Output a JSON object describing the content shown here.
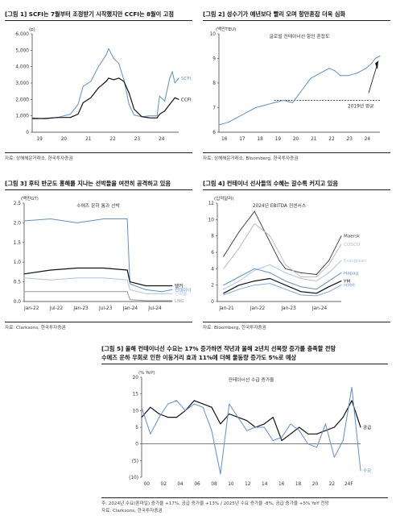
{
  "panels": [
    {
      "title": "[그림 1] SCFI는 7월부터 조정받기 시작했지만 CCFI는 8월이 고점",
      "source": "자료: 상해해운거래소, 한국투자증권",
      "chart_data": {
        "type": "line",
        "unit_label": "(p)",
        "x_ticks": [
          "19",
          "20",
          "21",
          "22",
          "23",
          "24"
        ],
        "x_range": [
          2019.0,
          2024.75
        ],
        "ylim": [
          0,
          6000
        ],
        "y_ticks": [
          0,
          1000,
          2000,
          3000,
          4000,
          5000,
          6000
        ],
        "y_tick_labels": [
          "0",
          "1,000",
          "2,000",
          "3,000",
          "4,000",
          "5,000",
          "6,000"
        ],
        "series": [
          {
            "name": "SCFI",
            "color": "#5b8fd6",
            "x": [
              2019.0,
              2019.5,
              2020.0,
              2020.5,
              2020.8,
              2021.0,
              2021.3,
              2021.6,
              2021.9,
              2022.0,
              2022.2,
              2022.4,
              2022.6,
              2022.8,
              2023.0,
              2023.3,
              2023.6,
              2023.9,
              2024.0,
              2024.2,
              2024.4,
              2024.5,
              2024.6,
              2024.75
            ],
            "y": [
              800,
              850,
              900,
              1100,
              1700,
              2800,
              3100,
              4000,
              4700,
              5100,
              4500,
              4200,
              3200,
              1700,
              1050,
              950,
              1000,
              1000,
              2200,
              1900,
              3300,
              3700,
              3000,
              3300
            ]
          },
          {
            "name": "CCFI",
            "color": "#111111",
            "x": [
              2019.0,
              2019.5,
              2020.0,
              2020.5,
              2020.8,
              2021.0,
              2021.3,
              2021.6,
              2021.9,
              2022.0,
              2022.2,
              2022.4,
              2022.6,
              2022.8,
              2023.0,
              2023.3,
              2023.6,
              2023.9,
              2024.0,
              2024.2,
              2024.4,
              2024.6,
              2024.75
            ],
            "y": [
              850,
              830,
              900,
              900,
              1100,
              1800,
              2100,
              2700,
              3100,
              3300,
              3200,
              3300,
              3100,
              2400,
              1400,
              950,
              880,
              870,
              1100,
              1300,
              1700,
              2100,
              2000
            ]
          }
        ]
      }
    },
    {
      "title": "[그림 2] 성수기가 예년보다 빨리 오며 항만혼잡 더욱 심화",
      "source": "자료: 상해해운거래소, Bloomberg, 한국투자증권",
      "chart_data": {
        "type": "line",
        "unit_label": "(백만TEU)",
        "annotation_top": "글로벌 컨테이너선 항만 혼잡도",
        "annotation_line": "2019년 평균",
        "x_ticks": [
          "16",
          "17",
          "18",
          "19",
          "20",
          "21",
          "22",
          "23",
          "24"
        ],
        "x_range": [
          2016.0,
          2024.75
        ],
        "ylim": [
          6,
          10
        ],
        "y_ticks": [
          6,
          7,
          8,
          9,
          10
        ],
        "y_tick_labels": [
          "6",
          "7",
          "8",
          "9",
          "10"
        ],
        "reference_y": 7.3,
        "series": [
          {
            "name": "",
            "color": "#5b8fd6",
            "x": [
              2016.0,
              2016.5,
              2017.0,
              2017.5,
              2018.0,
              2018.5,
              2019.0,
              2019.5,
              2020.0,
              2020.3,
              2020.7,
              2021.0,
              2021.5,
              2022.0,
              2022.3,
              2022.6,
              2023.0,
              2023.5,
              2024.0,
              2024.3,
              2024.5,
              2024.75
            ],
            "y": [
              6.3,
              6.4,
              6.6,
              6.8,
              7.0,
              7.1,
              7.2,
              7.3,
              7.2,
              7.5,
              7.9,
              8.2,
              8.4,
              8.6,
              8.5,
              8.3,
              8.3,
              8.4,
              8.6,
              8.8,
              9.0,
              9.1
            ]
          }
        ]
      }
    },
    {
      "title": "[그림 3] 후티 반군도 홍해를 지나는 선박들을 여전히 공격하고 있음",
      "source": "자료: Clarksons, 한국투자증권",
      "chart_data": {
        "type": "line",
        "unit_label": "(백만GT)",
        "annotation_top": "수에즈 운하 통과 선박",
        "x_ticks": [
          "Jan-22",
          "Jul-22",
          "Jan-23",
          "Jul-23",
          "Jan-24",
          "Jul-24"
        ],
        "x_range": [
          2022.0,
          2024.8
        ],
        "ylim": [
          0.0,
          2.5
        ],
        "y_ticks": [
          0.0,
          0.5,
          1.0,
          1.5,
          2.0,
          2.5
        ],
        "y_tick_labels": [
          "0.0",
          "0.5",
          "1.0",
          "1.5",
          "2.0",
          "2.5"
        ],
        "series": [
          {
            "name": "컨테이너",
            "color": "#5b8fd6",
            "x": [
              2022.0,
              2022.5,
              2023.0,
              2023.5,
              2023.95,
              2024.0,
              2024.3,
              2024.6,
              2024.8
            ],
            "y": [
              2.05,
              2.1,
              2.0,
              2.1,
              2.1,
              0.45,
              0.3,
              0.25,
              0.3
            ]
          },
          {
            "name": "탱커",
            "color": "#111111",
            "x": [
              2022.0,
              2022.5,
              2023.0,
              2023.5,
              2023.95,
              2024.0,
              2024.3,
              2024.6,
              2024.8
            ],
            "y": [
              0.7,
              0.8,
              0.85,
              0.85,
              0.8,
              0.5,
              0.4,
              0.4,
              0.4
            ]
          },
          {
            "name": "건화물",
            "color": "#a9c4ea",
            "x": [
              2022.0,
              2022.5,
              2023.0,
              2023.5,
              2023.95,
              2024.0,
              2024.3,
              2024.6,
              2024.8
            ],
            "y": [
              0.6,
              0.55,
              0.6,
              0.6,
              0.55,
              0.3,
              0.2,
              0.2,
              0.2
            ]
          },
          {
            "name": "LNG",
            "color": "#999999",
            "x": [
              2022.0,
              2022.5,
              2023.0,
              2023.5,
              2023.95,
              2024.0,
              2024.3,
              2024.6,
              2024.8
            ],
            "y": [
              0.25,
              0.25,
              0.25,
              0.25,
              0.25,
              0.05,
              0.02,
              0.02,
              0.02
            ]
          }
        ]
      }
    },
    {
      "title": "[그림 4] 컨테이너 선사들의 수혜는 갈수록 커지고 있음",
      "source": "자료: Bloomberg, 한국투자증권",
      "chart_data": {
        "type": "line",
        "unit_label": "(십억달러)",
        "annotation_top": "2024년 EBITDA 컨센서스",
        "x_ticks": [
          "Jan-21",
          "Jan-22",
          "Jan-23",
          "Jan-24"
        ],
        "x_range": [
          2020.8,
          2024.8
        ],
        "ylim": [
          0,
          12
        ],
        "y_ticks": [
          0,
          2,
          4,
          6,
          8,
          10,
          12
        ],
        "y_tick_labels": [
          "0",
          "2",
          "4",
          "6",
          "8",
          "10",
          "12"
        ],
        "series": [
          {
            "name": "Maersk",
            "color": "#444444",
            "x": [
              2021.0,
              2021.5,
              2021.9,
              2022.0,
              2022.4,
              2022.8,
              2023.0,
              2023.5,
              2024.0,
              2024.4,
              2024.8
            ],
            "y": [
              5.5,
              8.5,
              10.5,
              11.0,
              8.0,
              5.0,
              4.0,
              3.5,
              3.3,
              5.0,
              8.0
            ]
          },
          {
            "name": "COSCO",
            "color": "#bbbbbb",
            "x": [
              2021.0,
              2021.5,
              2022.0,
              2022.5,
              2023.0,
              2023.5,
              2024.0,
              2024.4,
              2024.8
            ],
            "y": [
              4.0,
              6.5,
              9.5,
              8.0,
              4.5,
              3.0,
              3.0,
              4.5,
              7.0
            ]
          },
          {
            "name": "Evergreen",
            "color": "#a9c4ea",
            "x": [
              2021.0,
              2021.5,
              2022.0,
              2022.5,
              2023.0,
              2023.5,
              2024.0,
              2024.4,
              2024.8
            ],
            "y": [
              1.5,
              2.5,
              3.8,
              4.5,
              3.5,
              2.8,
              2.5,
              3.5,
              5.0
            ]
          },
          {
            "name": "Hapag",
            "color": "#5b8fd6",
            "x": [
              2021.0,
              2021.5,
              2022.0,
              2022.5,
              2023.0,
              2023.5,
              2024.0,
              2024.4,
              2024.8
            ],
            "y": [
              2.0,
              3.0,
              4.0,
              3.5,
              2.5,
              1.8,
              1.5,
              2.5,
              3.5
            ]
          },
          {
            "name": "YM",
            "color": "#111111",
            "x": [
              2021.0,
              2021.5,
              2022.0,
              2022.5,
              2023.0,
              2023.5,
              2024.0,
              2024.4,
              2024.8
            ],
            "y": [
              1.0,
              2.0,
              2.5,
              2.8,
              2.0,
              1.2,
              1.0,
              1.8,
              2.5
            ]
          },
          {
            "name": "HMM",
            "color": "#7fa8dd",
            "x": [
              2021.0,
              2021.5,
              2022.0,
              2022.5,
              2023.0,
              2023.5,
              2024.0,
              2024.4,
              2024.8
            ],
            "y": [
              0.8,
              1.5,
              2.0,
              2.2,
              1.5,
              0.8,
              0.7,
              1.2,
              2.0
            ]
          }
        ]
      }
    },
    {
      "title": "[그림 5] 올해 컨테이너선 수요는 17% 증가하면 작년과 올해 2년치 선복량 증가를 충족할 전망",
      "title2": "수에즈 운하 우회로 인한 이동거리 효과 11%에 더해 물동량 증가도 5%로 예상",
      "source": "주: 2024년 수요(톤마일) 증가율 +17%, 공급 증가율 +13% / 2025년 수요 증가율 -8%, 공급 증가율 +5% YoY 전망",
      "source2": "자료: Clarksons, 한국투자증권",
      "chart_data": {
        "type": "line",
        "unit_label": "(% YoY)",
        "annotation_top": "컨테이너선 수급 증가율",
        "x_ticks": [
          "00",
          "02",
          "04",
          "06",
          "08",
          "10",
          "12",
          "14",
          "16",
          "18",
          "20",
          "22",
          "24F"
        ],
        "x_range": [
          2000,
          2025
        ],
        "ylim": [
          -10,
          20
        ],
        "y_ticks": [
          -10,
          -5,
          0,
          5,
          10,
          15,
          20
        ],
        "y_tick_labels": [
          "(10)",
          "(5)",
          "0",
          "5",
          "10",
          "15",
          "20"
        ],
        "series": [
          {
            "name": "공급",
            "color": "#111111",
            "x": [
              2000,
              2001,
              2002,
              2003,
              2004,
              2005,
              2006,
              2007,
              2008,
              2009,
              2010,
              2011,
              2012,
              2013,
              2014,
              2015,
              2016,
              2017,
              2018,
              2019,
              2020,
              2021,
              2022,
              2023,
              2024,
              2025
            ],
            "y": [
              8,
              11,
              9,
              8,
              8,
              10,
              13,
              12,
              11,
              6,
              9,
              8,
              7,
              5,
              6,
              8,
              1,
              3,
              5,
              3,
              3,
              4,
              5,
              8,
              13,
              5
            ]
          },
          {
            "name": "수요",
            "color": "#5b8fd6",
            "x": [
              2000,
              2001,
              2002,
              2003,
              2004,
              2005,
              2006,
              2007,
              2008,
              2009,
              2010,
              2011,
              2012,
              2013,
              2014,
              2015,
              2016,
              2017,
              2018,
              2019,
              2020,
              2021,
              2022,
              2023,
              2024,
              2025
            ],
            "y": [
              11,
              3,
              8,
              12,
              13,
              10,
              12,
              11,
              4,
              -9,
              12,
              8,
              4,
              5,
              5,
              1,
              2,
              6,
              4,
              0,
              -1,
              6,
              -4,
              1,
              17,
              -8
            ]
          }
        ]
      }
    }
  ]
}
